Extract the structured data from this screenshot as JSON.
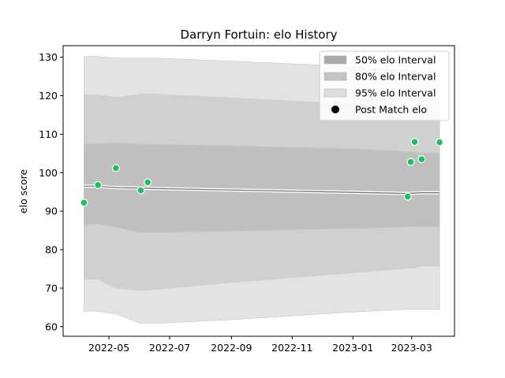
{
  "chart_data": {
    "type": "line",
    "title": "Darryn Fortuin: elo History",
    "xlabel": "",
    "ylabel": "elo score",
    "ylim": [
      57.5,
      133.0
    ],
    "xlim": [
      "2022-03-16",
      "2023-04-13"
    ],
    "x_ticks": [
      {
        "date": "2022-05-01",
        "label": "2022-05"
      },
      {
        "date": "2022-07-01",
        "label": "2022-07"
      },
      {
        "date": "2022-09-01",
        "label": "2022-09"
      },
      {
        "date": "2022-11-01",
        "label": "2022-11"
      },
      {
        "date": "2023-01-01",
        "label": "2023-01"
      },
      {
        "date": "2023-03-01",
        "label": "2023-03"
      }
    ],
    "y_ticks": [
      60,
      70,
      80,
      90,
      100,
      110,
      120,
      130
    ],
    "grid": false,
    "legend_position": "top-right",
    "legend": [
      {
        "label": "50% elo Interval",
        "color": "#aaaaaa"
      },
      {
        "label": "80% elo Interval",
        "color": "#c4c4c4"
      },
      {
        "label": "95% elo Interval",
        "color": "#dedede"
      },
      {
        "label": "Post Match elo",
        "color": "#000000"
      }
    ],
    "band_dates": [
      "2022-04-06",
      "2022-04-20",
      "2022-05-08",
      "2022-06-02",
      "2022-06-14",
      "2022-09-01",
      "2023-01-01",
      "2023-02-24",
      "2023-03-04",
      "2023-03-11",
      "2023-03-29"
    ],
    "mean_line": {
      "color": "#777777",
      "highlight": "#ffffff",
      "values": [
        96.5,
        96.5,
        96.1,
        96.0,
        95.9,
        95.5,
        94.9,
        94.6,
        94.7,
        94.8,
        94.8
      ]
    },
    "bands": [
      {
        "name": "95% elo Interval",
        "color": "#e3e3e3",
        "upper": [
          130.2,
          130.2,
          129.8,
          129.8,
          129.8,
          129.0,
          127.6,
          126.5,
          126.3,
          125.9,
          125.8
        ],
        "lower": [
          64.0,
          64.0,
          63.3,
          60.8,
          60.8,
          61.8,
          63.8,
          64.5,
          64.5,
          64.5,
          64.5
        ]
      },
      {
        "name": "80% elo Interval",
        "color": "#d0d0d0",
        "upper": [
          120.2,
          120.2,
          119.5,
          120.4,
          120.4,
          119.4,
          117.8,
          116.5,
          116.3,
          115.9,
          115.5
        ],
        "lower": [
          72.3,
          72.3,
          70.0,
          69.4,
          69.6,
          71.5,
          74.0,
          75.2,
          75.2,
          75.8,
          75.8
        ]
      },
      {
        "name": "50% elo Interval",
        "color": "#bfbfbf",
        "upper": [
          107.5,
          107.5,
          107.8,
          107.4,
          107.4,
          107.0,
          106.2,
          105.5,
          105.4,
          105.1,
          105.1
        ],
        "lower": [
          86.6,
          86.6,
          85.8,
          84.4,
          84.4,
          84.8,
          85.5,
          85.9,
          86.0,
          86.0,
          86.0
        ]
      }
    ],
    "points": {
      "name": "Post Match elo",
      "color": "#1fbf5f",
      "x": [
        "2022-04-06",
        "2022-04-20",
        "2022-05-08",
        "2022-06-02",
        "2022-06-09",
        "2023-02-25",
        "2023-02-28",
        "2023-03-04",
        "2023-03-11",
        "2023-03-29"
      ],
      "y": [
        92.2,
        96.8,
        101.2,
        95.4,
        97.5,
        93.8,
        102.8,
        108.0,
        103.5,
        107.9
      ]
    }
  }
}
